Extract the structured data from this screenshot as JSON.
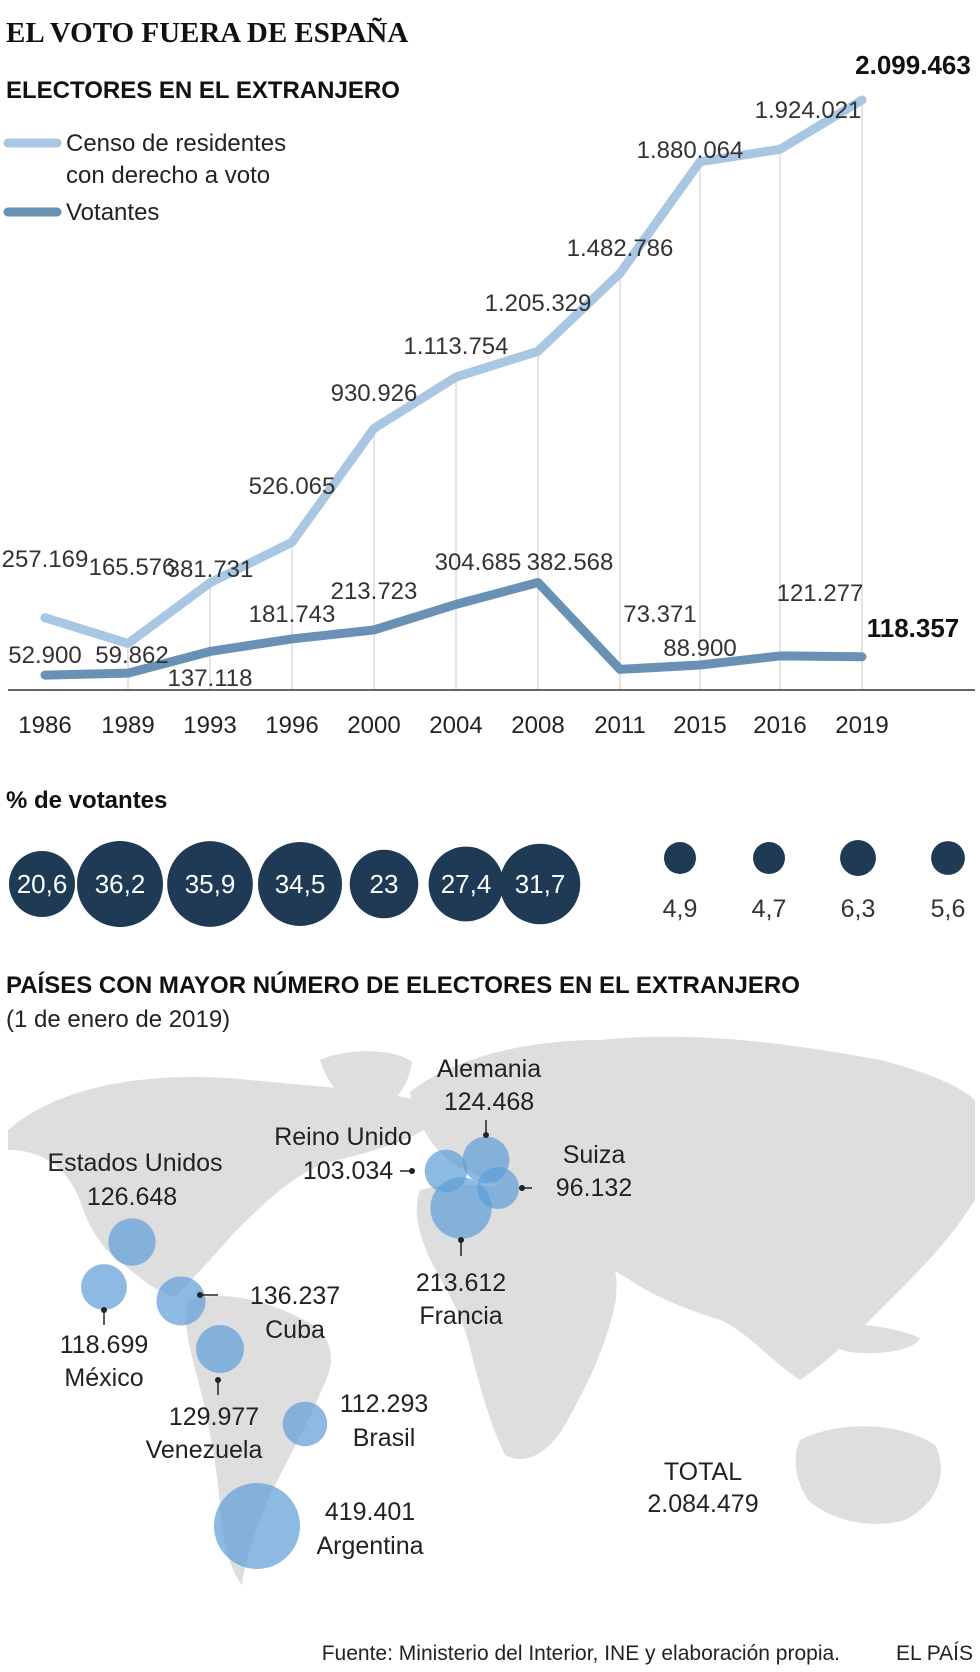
{
  "title": "EL VOTO FUERA DE ESPAÑA",
  "chart_data": [
    {
      "type": "line",
      "title": "ELECTORES EN EL EXTRANJERO",
      "x": [
        "1986",
        "1989",
        "1993",
        "1996",
        "2000",
        "2004",
        "2008",
        "2011",
        "2015",
        "2016",
        "2019"
      ],
      "series": [
        {
          "name": "Censo de residentes con derecho a voto",
          "legend_lines": [
            "Censo de residentes",
            "con derecho a voto"
          ],
          "color": "#a9c6e3",
          "values": [
            257169,
            165576,
            381731,
            526065,
            930926,
            1113754,
            1205329,
            1482786,
            1880064,
            1924021,
            2099463
          ],
          "labels": [
            "257.169",
            "165.576",
            "381.731",
            "526.065",
            "930.926",
            "1.113.754",
            "1.205.329",
            "1.482.786",
            "1.880.064",
            "1.924.021",
            "2.099.463"
          ]
        },
        {
          "name": "Votantes",
          "color": "#6891b5",
          "values": [
            52900,
            59862,
            137118,
            181743,
            213723,
            304685,
            382568,
            73371,
            88900,
            121277,
            118357
          ],
          "labels": [
            "52.900",
            "59.862",
            "137.118",
            "181.743",
            "213.723",
            "304.685",
            "382.568",
            "73.371",
            "88.900",
            "121.277",
            "118.357"
          ]
        }
      ],
      "grid": "vertical",
      "legend": "top-left"
    },
    {
      "type": "bubble",
      "title": "% de votantes",
      "categories": [
        "1986",
        "1989",
        "1993",
        "1996",
        "2000",
        "2004",
        "2008",
        "2011",
        "2015",
        "2016",
        "2019"
      ],
      "values": [
        20.6,
        36.2,
        35.9,
        34.5,
        23,
        27.4,
        31.7,
        4.9,
        4.7,
        6.3,
        5.6
      ],
      "labels": [
        "20,6",
        "36,2",
        "35,9",
        "34,5",
        "23",
        "27,4",
        "31,7",
        "4,9",
        "4,7",
        "6,3",
        "5,6"
      ],
      "color": "#1e3a55"
    },
    {
      "type": "bubble-map",
      "title": "PAÍSES CON MAYOR NÚMERO DE ELECTORES EN EL EXTRANJERO",
      "subtitle": "(1 de enero de 2019)",
      "color": "#5f9fd8",
      "points": [
        {
          "country": "Estados Unidos",
          "value": 126648,
          "label": "126.648"
        },
        {
          "country": "México",
          "value": 118699,
          "label": "118.699"
        },
        {
          "country": "Cuba",
          "value": 136237,
          "label": "136.237"
        },
        {
          "country": "Venezuela",
          "value": 129977,
          "label": "129.977"
        },
        {
          "country": "Brasil",
          "value": 112293,
          "label": "112.293"
        },
        {
          "country": "Argentina",
          "value": 419401,
          "label": "419.401"
        },
        {
          "country": "Reino Unido",
          "value": 103034,
          "label": "103.034"
        },
        {
          "country": "Alemania",
          "value": 124468,
          "label": "124.468"
        },
        {
          "country": "Suiza",
          "value": 96132,
          "label": "96.132"
        },
        {
          "country": "Francia",
          "value": 213612,
          "label": "213.612"
        }
      ],
      "total_label": "TOTAL",
      "total_value": "2.084.479"
    }
  ],
  "source": "Fuente: Ministerio del Interior, INE y elaboración propia.",
  "brand": "EL PAÍS"
}
